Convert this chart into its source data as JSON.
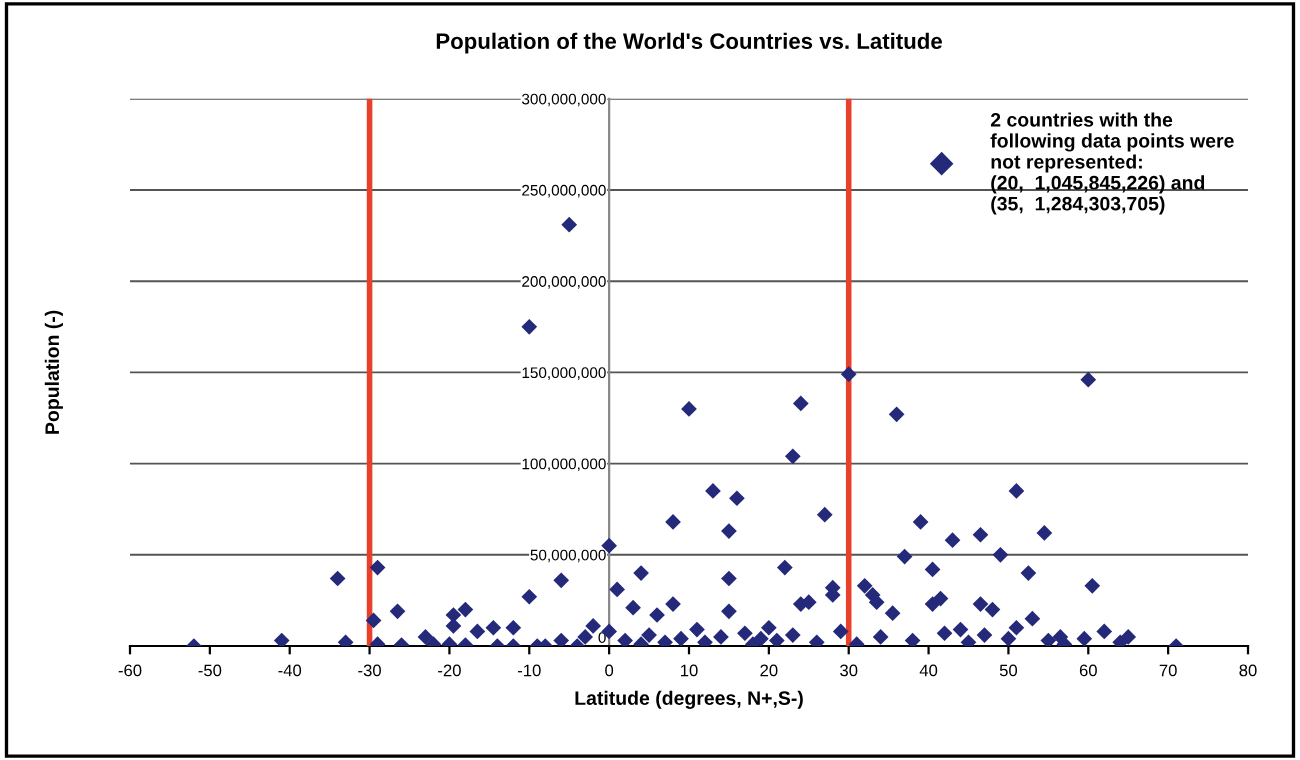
{
  "chart_data": {
    "type": "scatter",
    "title": "Population of the World's Countries vs. Latitude",
    "xlabel": "Latitude (degrees, N+,S-)",
    "ylabel": "Population (-)",
    "xlim": [
      -60,
      80
    ],
    "xticks": [
      -60,
      -50,
      -40,
      -30,
      -20,
      -10,
      0,
      10,
      20,
      30,
      40,
      50,
      60,
      70,
      80
    ],
    "ylim": [
      0,
      300000000
    ],
    "yticks": [
      {
        "value": 0,
        "label": "0"
      },
      {
        "value": 50000000,
        "label": "50,000,000"
      },
      {
        "value": 100000000,
        "label": "100,000,000"
      },
      {
        "value": 150000000,
        "label": "150,000,000"
      },
      {
        "value": 200000000,
        "label": "200,000,000"
      },
      {
        "value": 250000000,
        "label": "250,000,000"
      },
      {
        "value": 300000000,
        "label": "300,000,000"
      }
    ],
    "grid": "y",
    "legend": "top right",
    "marker": "diamond",
    "ref_lines": [
      {
        "axis": "x",
        "value": -30,
        "color": "#e8402a"
      },
      {
        "axis": "x",
        "value": 30,
        "color": "#e8402a"
      }
    ],
    "series": [
      {
        "name": "2 countries with the\nfollowing data points were\nnot represented:\n(20,  1,045,845,226) and\n(35,  1,284,303,705)",
        "color": "#24297a",
        "x": [
          -5,
          -10,
          10,
          13,
          16,
          24,
          23,
          30,
          36,
          60,
          51,
          27,
          -52,
          -41,
          -34,
          -33,
          -29,
          -29.5,
          -29,
          -26.5,
          -26,
          -23,
          -22,
          -20,
          -19.5,
          -19.5,
          -18,
          -16.5,
          -18,
          -14.5,
          -14,
          -12,
          -12,
          -10,
          -9,
          -8,
          -6,
          -6,
          -4,
          -3,
          -2,
          0,
          1,
          3,
          4,
          8,
          6,
          8,
          15,
          15,
          15,
          22,
          24,
          25,
          28,
          28,
          32,
          33,
          33.5,
          35.5,
          37,
          39,
          40.5,
          40.5,
          41.5,
          43,
          46.5,
          46.5,
          49,
          48,
          52.5,
          54.5,
          53,
          56.5,
          59.5,
          60.5,
          71,
          0,
          2,
          4,
          5,
          7,
          9,
          11,
          12,
          14,
          17,
          18,
          19,
          20,
          21,
          23,
          26,
          29,
          31,
          34,
          38,
          42,
          44,
          45,
          47,
          50,
          51,
          55,
          57,
          62,
          64,
          65
        ],
        "values": [
          231000000,
          175000000,
          130000000,
          85000000,
          81000000,
          133000000,
          104000000,
          149000000,
          127000000,
          146000000,
          85000000,
          72000000,
          0,
          3000000,
          37000000,
          2000000,
          43000000,
          14000000,
          1000000,
          19000000,
          500000,
          5000000,
          1000000,
          1000000,
          17000000,
          11000000,
          20000000,
          8000000,
          500000,
          10000000,
          0,
          10000000,
          0,
          27000000,
          0,
          0,
          36000000,
          3000000,
          0,
          5000000,
          11000000,
          55000000,
          31000000,
          21000000,
          40000000,
          68000000,
          17000000,
          23000000,
          63000000,
          37000000,
          19000000,
          43000000,
          23000000,
          24000000,
          32000000,
          28000000,
          33000000,
          28000000,
          24000000,
          18000000,
          49000000,
          68000000,
          42000000,
          23000000,
          26000000,
          58000000,
          61000000,
          23000000,
          50000000,
          20000000,
          40000000,
          62000000,
          15000000,
          5000000,
          4000000,
          33000000,
          0,
          8000000,
          3000000,
          1000000,
          6000000,
          2000000,
          4000000,
          9000000,
          2000000,
          5000000,
          7000000,
          1000000,
          4000000,
          10000000,
          3000000,
          6000000,
          2000000,
          8000000,
          1000000,
          5000000,
          3000000,
          7000000,
          9000000,
          2000000,
          6000000,
          4000000,
          10000000,
          3000000,
          1000000,
          8000000,
          2000000,
          5000000
        ]
      }
    ]
  }
}
